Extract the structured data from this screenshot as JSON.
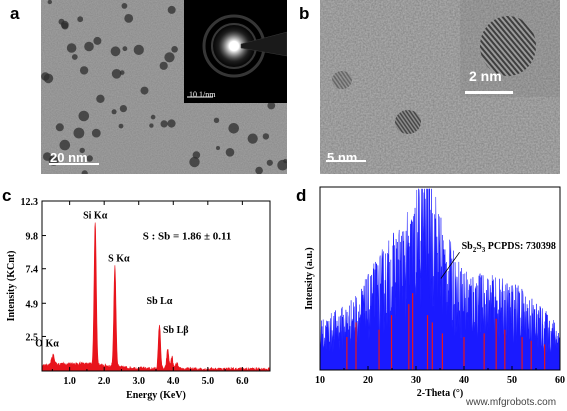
{
  "panels": {
    "a": {
      "label": "a",
      "scale_bar": "20 nm",
      "inset_scale": "10 1/nm"
    },
    "b": {
      "label": "b",
      "scale_bar": "5 nm",
      "inset_scale": "2 nm"
    },
    "c": {
      "label": "c"
    },
    "d": {
      "label": "d"
    }
  },
  "watermark": "www.mfgrobots.com",
  "colors": {
    "eds_fill": "#e8141c",
    "xrd_fill": "#1a1aff",
    "pdf_lines": "#e8141c"
  },
  "chart_data": [
    {
      "type": "area",
      "name": "panel-c-eds",
      "title": "",
      "xlabel": "Energy (KeV)",
      "ylabel": "Intensity (KCnt)",
      "xlim": [
        0.2,
        6.8
      ],
      "ylim": [
        0,
        12.3
      ],
      "x_ticks": [
        "1.0",
        "2.0",
        "3.0",
        "4.0",
        "5.0",
        "6.0"
      ],
      "x_tick_values": [
        1.0,
        2.0,
        3.0,
        4.0,
        5.0,
        6.0
      ],
      "y_ticks": [
        "2.5",
        "4.9",
        "7.4",
        "9.8",
        "12.3"
      ],
      "y_tick_values": [
        2.5,
        4.9,
        7.4,
        9.8,
        12.3
      ],
      "peaks": [
        {
          "label": "O Kα",
          "x": 0.52,
          "y": 0.9
        },
        {
          "label": "Si Kα",
          "x": 1.74,
          "y": 10.6
        },
        {
          "label": "S Kα",
          "x": 2.31,
          "y": 7.5
        },
        {
          "label": "Sb Lα",
          "x": 3.6,
          "y": 3.4
        },
        {
          "label": "Sb Lβ",
          "x": 3.84,
          "y": 1.6
        }
      ],
      "annotation": "S : Sb = 1.86 ± 0.11"
    },
    {
      "type": "area",
      "name": "panel-d-xrd",
      "title": "",
      "xlabel": "2-Theta (°)",
      "ylabel": "Intensity (a.u.)",
      "xlim": [
        10,
        60
      ],
      "x_ticks": [
        "10",
        "20",
        "30",
        "40",
        "50",
        "60"
      ],
      "x_tick_values": [
        10,
        20,
        30,
        40,
        50,
        60
      ],
      "envelope": {
        "x": [
          10,
          13,
          16,
          19,
          22,
          25,
          27,
          29,
          31,
          32.5,
          34,
          36,
          39,
          42,
          45,
          48,
          51,
          54,
          57,
          60
        ],
        "y": [
          0.22,
          0.26,
          0.3,
          0.38,
          0.5,
          0.6,
          0.65,
          0.72,
          0.86,
          0.98,
          0.8,
          0.62,
          0.48,
          0.44,
          0.42,
          0.4,
          0.38,
          0.33,
          0.26,
          0.2
        ]
      },
      "reference": {
        "label": "Sb2S3 PCPDS: 730398",
        "label_main": "Sb",
        "label_sub1": "2",
        "label_mid": "S",
        "label_sub2": "3",
        "label_rest": " PCPDS: 730398",
        "lines": [
          {
            "x": 15.6,
            "h": 0.18
          },
          {
            "x": 17.5,
            "h": 0.26
          },
          {
            "x": 22.3,
            "h": 0.22
          },
          {
            "x": 24.9,
            "h": 0.3
          },
          {
            "x": 28.5,
            "h": 0.36
          },
          {
            "x": 29.3,
            "h": 0.42
          },
          {
            "x": 32.4,
            "h": 0.3
          },
          {
            "x": 33.4,
            "h": 0.26
          },
          {
            "x": 35.5,
            "h": 0.2
          },
          {
            "x": 40.0,
            "h": 0.18
          },
          {
            "x": 44.2,
            "h": 0.2
          },
          {
            "x": 46.7,
            "h": 0.28
          },
          {
            "x": 48.5,
            "h": 0.22
          },
          {
            "x": 52.1,
            "h": 0.18
          },
          {
            "x": 54.0,
            "h": 0.16
          },
          {
            "x": 56.8,
            "h": 0.14
          }
        ]
      }
    }
  ]
}
